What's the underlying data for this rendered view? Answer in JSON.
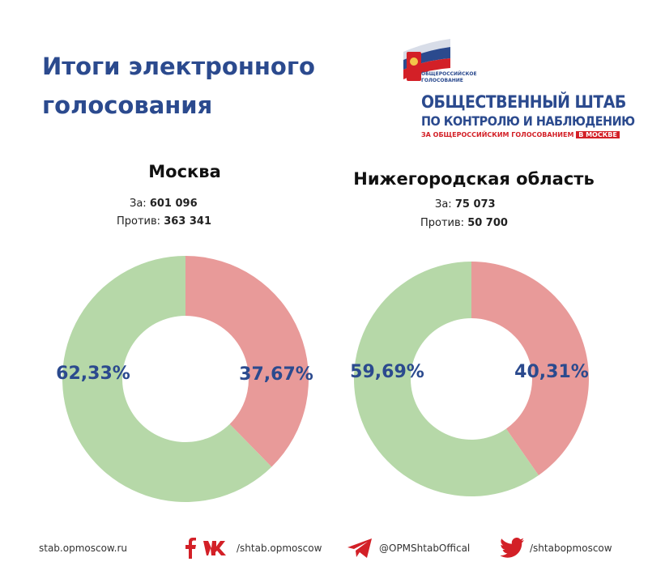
{
  "title_lines": [
    "Итоги электронного",
    "голосования"
  ],
  "logo": {
    "small_text_1": "ОБЩЕРОССИЙСКОЕ",
    "small_text_2": "ГОЛОСОВАНИЕ",
    "line1": "ОБЩЕСТВЕННЫЙ ШТАБ",
    "line2": "ПО КОНТРОЛЮ И НАБЛЮДЕНИЮ",
    "line3": "ЗА ОБЩЕРОССИЙСКИМ ГОЛОСОВАНИЕМ",
    "badge": "В МОСКВЕ"
  },
  "colors": {
    "for": "#b6d8a8",
    "against": "#e89a99",
    "accent": "#2b4a8e"
  },
  "regions": [
    {
      "name": "Москва",
      "for_label": "За:",
      "for_value": "601 096",
      "against_label": "Против:",
      "against_value": "363 341"
    },
    {
      "name": "Нижегородская область",
      "for_label": "За:",
      "for_value": "75 073",
      "against_label": "Против:",
      "against_value": "50 700"
    }
  ],
  "chart_data": [
    {
      "type": "pie",
      "title": "Москва",
      "categories": [
        "Против",
        "За"
      ],
      "values": [
        37.67,
        62.33
      ],
      "labels": [
        "37,67%",
        "62,33%"
      ]
    },
    {
      "type": "pie",
      "title": "Нижегородская область",
      "categories": [
        "Против",
        "За"
      ],
      "values": [
        40.31,
        59.69
      ],
      "labels": [
        "40,31%",
        "59,69%"
      ]
    }
  ],
  "footer": {
    "website": "stab.opmoscow.ru",
    "vk": "/shtab.opmoscow",
    "telegram": "@OPMShtabOffical",
    "twitter": "/shtabopmoscow"
  }
}
